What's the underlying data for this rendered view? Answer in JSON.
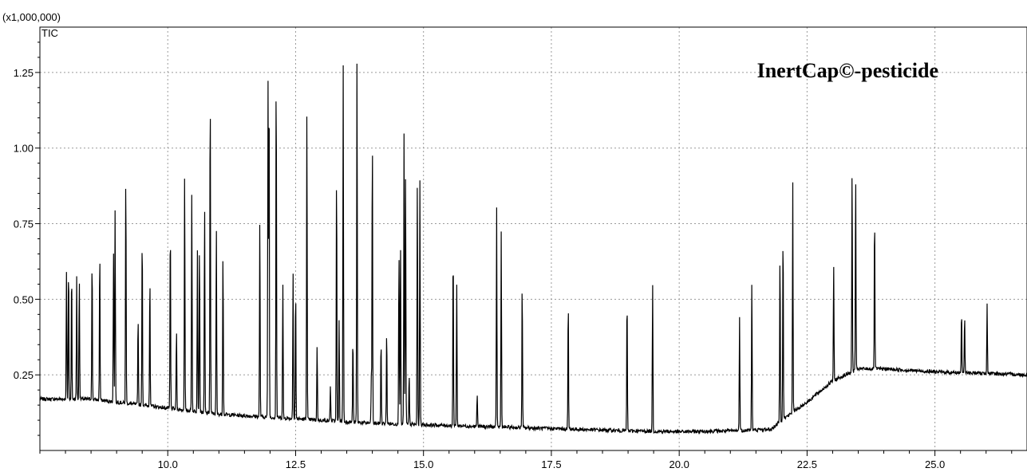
{
  "chart_data": {
    "type": "line",
    "title": "",
    "xlabel": "",
    "ylabel": "",
    "y_multiplier_label": "(x1,000,000)",
    "series_tag": "TIC",
    "annotation": "InertCap©-pesticide",
    "grid": true,
    "xlim": [
      7.5,
      26.8
    ],
    "ylim": [
      0.0,
      1.4
    ],
    "x_ticks": [
      10.0,
      12.5,
      15.0,
      17.5,
      20.0,
      22.5,
      25.0
    ],
    "x_tick_labels": [
      "10.0",
      "12.5",
      "15.0",
      "17.5",
      "20.0",
      "22.5",
      "25.0"
    ],
    "y_ticks": [
      0.25,
      0.5,
      0.75,
      1.0,
      1.25
    ],
    "y_tick_labels": [
      "0.25",
      "0.50",
      "0.75",
      "1.00",
      "1.25"
    ],
    "baseline": {
      "x": [
        7.5,
        8.0,
        8.5,
        9.0,
        9.5,
        10.0,
        11.0,
        12.0,
        13.0,
        14.0,
        15.0,
        16.0,
        17.0,
        18.0,
        19.0,
        20.0,
        21.0,
        21.8,
        22.0,
        22.5,
        23.0,
        23.5,
        24.0,
        25.0,
        26.0,
        26.8
      ],
      "y": [
        0.17,
        0.17,
        0.17,
        0.16,
        0.15,
        0.14,
        0.12,
        0.11,
        0.1,
        0.09,
        0.085,
        0.08,
        0.075,
        0.07,
        0.065,
        0.062,
        0.065,
        0.07,
        0.1,
        0.16,
        0.23,
        0.27,
        0.27,
        0.26,
        0.255,
        0.25
      ]
    },
    "peaks": [
      {
        "rt": 8.02,
        "height": 0.59
      },
      {
        "rt": 8.06,
        "height": 0.62
      },
      {
        "rt": 8.12,
        "height": 0.6
      },
      {
        "rt": 8.22,
        "height": 0.58
      },
      {
        "rt": 8.27,
        "height": 0.58
      },
      {
        "rt": 8.52,
        "height": 0.64
      },
      {
        "rt": 8.67,
        "height": 0.67
      },
      {
        "rt": 8.94,
        "height": 0.65
      },
      {
        "rt": 8.97,
        "height": 0.79
      },
      {
        "rt": 9.18,
        "height": 0.92
      },
      {
        "rt": 9.42,
        "height": 0.45
      },
      {
        "rt": 9.5,
        "height": 0.73
      },
      {
        "rt": 9.65,
        "height": 0.58
      },
      {
        "rt": 10.05,
        "height": 0.76
      },
      {
        "rt": 10.17,
        "height": 0.4
      },
      {
        "rt": 10.33,
        "height": 0.93
      },
      {
        "rt": 10.47,
        "height": 0.85
      },
      {
        "rt": 10.58,
        "height": 0.67
      },
      {
        "rt": 10.62,
        "height": 0.68
      },
      {
        "rt": 10.72,
        "height": 0.81
      },
      {
        "rt": 10.83,
        "height": 1.22
      },
      {
        "rt": 10.95,
        "height": 0.75
      },
      {
        "rt": 11.08,
        "height": 0.66
      },
      {
        "rt": 11.8,
        "height": 0.78
      },
      {
        "rt": 11.96,
        "height": 1.24
      },
      {
        "rt": 11.98,
        "height": 1.25
      },
      {
        "rt": 12.12,
        "height": 1.28
      },
      {
        "rt": 12.25,
        "height": 0.55
      },
      {
        "rt": 12.45,
        "height": 0.6
      },
      {
        "rt": 12.5,
        "height": 0.54
      },
      {
        "rt": 12.72,
        "height": 1.14
      },
      {
        "rt": 12.92,
        "height": 0.35
      },
      {
        "rt": 13.18,
        "height": 0.22
      },
      {
        "rt": 13.3,
        "height": 0.93
      },
      {
        "rt": 13.35,
        "height": 0.43
      },
      {
        "rt": 13.43,
        "height": 1.29
      },
      {
        "rt": 13.62,
        "height": 0.38
      },
      {
        "rt": 13.7,
        "height": 1.33
      },
      {
        "rt": 13.98,
        "height": 0.24
      },
      {
        "rt": 14.0,
        "height": 1.06
      },
      {
        "rt": 14.17,
        "height": 0.37
      },
      {
        "rt": 14.28,
        "height": 0.4
      },
      {
        "rt": 14.52,
        "height": 0.67
      },
      {
        "rt": 14.55,
        "height": 0.69
      },
      {
        "rt": 14.62,
        "height": 1.07
      },
      {
        "rt": 14.65,
        "height": 0.93
      },
      {
        "rt": 14.72,
        "height": 0.25
      },
      {
        "rt": 14.88,
        "height": 0.89
      },
      {
        "rt": 14.93,
        "height": 0.89
      },
      {
        "rt": 15.58,
        "height": 0.68
      },
      {
        "rt": 15.65,
        "height": 0.55
      },
      {
        "rt": 16.05,
        "height": 0.19
      },
      {
        "rt": 16.43,
        "height": 0.8
      },
      {
        "rt": 16.52,
        "height": 0.73
      },
      {
        "rt": 16.93,
        "height": 0.56
      },
      {
        "rt": 17.83,
        "height": 0.5
      },
      {
        "rt": 18.98,
        "height": 0.52
      },
      {
        "rt": 19.48,
        "height": 0.55
      },
      {
        "rt": 21.18,
        "height": 0.45
      },
      {
        "rt": 21.42,
        "height": 0.57
      },
      {
        "rt": 21.97,
        "height": 0.66
      },
      {
        "rt": 22.03,
        "height": 0.74
      },
      {
        "rt": 22.22,
        "height": 0.89
      },
      {
        "rt": 23.02,
        "height": 0.62
      },
      {
        "rt": 23.38,
        "height": 0.94
      },
      {
        "rt": 23.45,
        "height": 0.92
      },
      {
        "rt": 23.82,
        "height": 0.79
      },
      {
        "rt": 25.52,
        "height": 0.46
      },
      {
        "rt": 25.58,
        "height": 0.45
      },
      {
        "rt": 26.02,
        "height": 0.49
      }
    ]
  }
}
